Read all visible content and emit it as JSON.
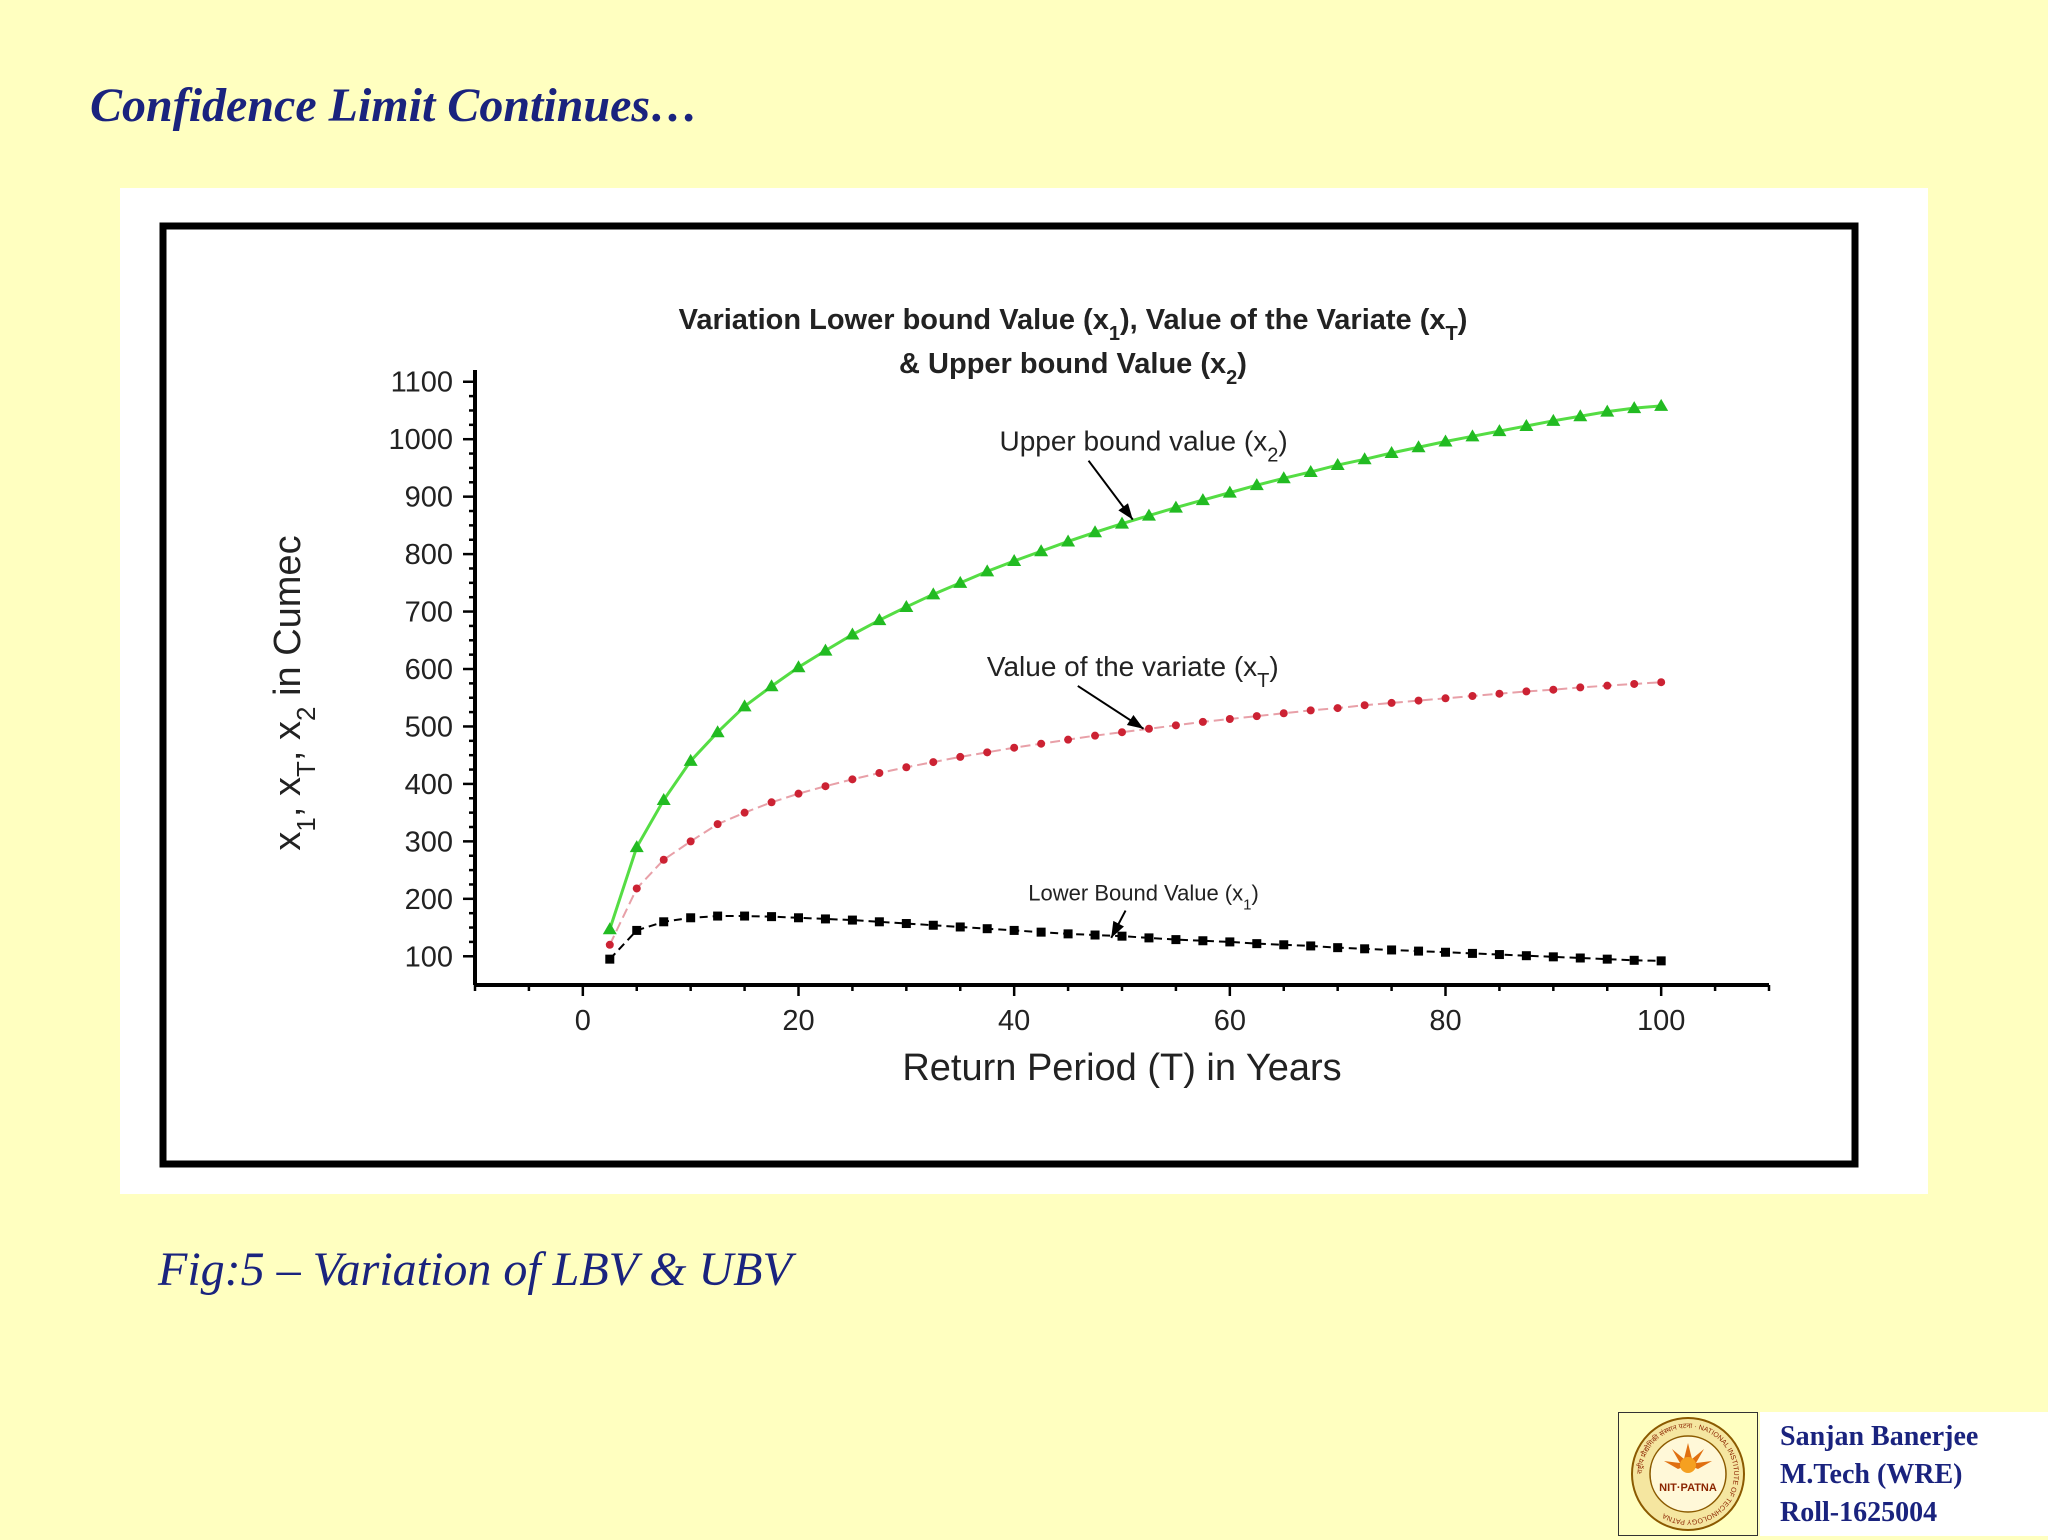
{
  "slide": {
    "title": "Confidence Limit Continues…",
    "caption": "Fig:5 – Variation of LBV & UBV"
  },
  "footer": {
    "author": "Sanjan Banerjee",
    "degree": "M.Tech (WRE)",
    "roll": "Roll-1625004",
    "logo_text": "NIT·PATNA",
    "logo_ring_text": "राष्ट्रीय प्रौद्योगिकी संस्थान पटना · NATIONAL INSTITUTE OF TECHNOLOGY PATNA"
  },
  "colors": {
    "background": "#FFFFC0",
    "title": "#1A237E",
    "upper_line": "#55DD44",
    "upper_marker": "#22BB22",
    "variate_line": "#E8A0A8",
    "variate_marker": "#CC2233",
    "lower_line": "#000000",
    "lower_marker": "#000000"
  },
  "chart_data": {
    "type": "line",
    "title_line1_parts": [
      "Variation Lower bound Value (x",
      "1",
      "), Value of the Variate (x",
      "T",
      ")"
    ],
    "title_line2_parts": [
      "& Upper bound Value (x",
      "2",
      ")"
    ],
    "xlabel": "Return Period (T) in Years",
    "ylabel_parts": [
      "x",
      "1",
      ", x",
      "T",
      ", x",
      "2",
      " in Cumec"
    ],
    "xlim": [
      -10,
      110
    ],
    "ylim": [
      50,
      1110
    ],
    "xticks": [
      0,
      20,
      40,
      60,
      80,
      100
    ],
    "yticks": [
      100,
      200,
      300,
      400,
      500,
      600,
      700,
      800,
      900,
      1000,
      1100
    ],
    "grid": false,
    "x": [
      2.5,
      5,
      7.5,
      10,
      12.5,
      15,
      17.5,
      20,
      22.5,
      25,
      27.5,
      30,
      32.5,
      35,
      37.5,
      40,
      42.5,
      45,
      47.5,
      50,
      52.5,
      55,
      57.5,
      60,
      62.5,
      65,
      67.5,
      70,
      72.5,
      75,
      77.5,
      80,
      82.5,
      85,
      87.5,
      90,
      92.5,
      95,
      97.5,
      100
    ],
    "series": [
      {
        "id": "upper",
        "marker": "triangle",
        "values": [
          147,
          290,
          372,
          440,
          490,
          535,
          570,
          603,
          632,
          660,
          685,
          708,
          730,
          750,
          770,
          788,
          805,
          822,
          838,
          853,
          867,
          881,
          894,
          907,
          920,
          932,
          943,
          955,
          965,
          976,
          986,
          996,
          1005,
          1014,
          1023,
          1032,
          1040,
          1048,
          1054,
          1058
        ]
      },
      {
        "id": "variate",
        "marker": "dot",
        "values": [
          120,
          218,
          268,
          300,
          330,
          350,
          368,
          383,
          396,
          408,
          419,
          429,
          438,
          447,
          455,
          463,
          470,
          477,
          484,
          490,
          496,
          502,
          508,
          513,
          518,
          523,
          528,
          532,
          537,
          541,
          545,
          549,
          553,
          557,
          561,
          564,
          568,
          571,
          574,
          577
        ]
      },
      {
        "id": "lower",
        "marker": "square",
        "values": [
          95,
          145,
          160,
          167,
          170,
          170,
          169,
          167,
          165,
          163,
          160,
          157,
          154,
          151,
          148,
          145,
          142,
          139,
          137,
          135,
          132,
          129,
          127,
          125,
          122,
          120,
          118,
          115,
          113,
          111,
          109,
          107,
          105,
          103,
          101,
          99,
          97,
          95,
          93,
          92
        ]
      }
    ],
    "annotations": [
      {
        "target": "upper",
        "text_parts": [
          "Upper bound value (x",
          "2",
          ")"
        ],
        "text_x": 52,
        "text_y": 980,
        "arrow_to": [
          51,
          860
        ]
      },
      {
        "target": "variate",
        "text_parts": [
          "Value of the variate (x",
          "T",
          ")"
        ],
        "text_x": 51,
        "text_y": 588,
        "arrow_to": [
          52,
          496
        ]
      },
      {
        "target": "lower",
        "text_parts": [
          "Lower Bound Value (x",
          "1",
          ")"
        ],
        "text_x": 52,
        "text_y": 197,
        "arrow_to": [
          49,
          132
        ]
      }
    ]
  }
}
